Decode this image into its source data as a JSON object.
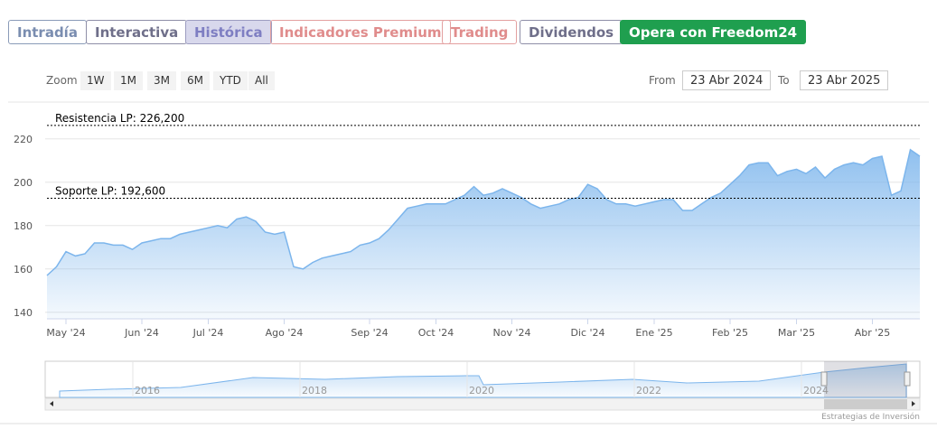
{
  "tabs": [
    "Intradía",
    "Interactiva",
    "Histórica",
    "Indicadores Premium",
    "Trading",
    "Dividendos",
    "Opera con Freedom24"
  ],
  "zoom": {
    "label": "Zoom",
    "buttons": [
      "1W",
      "1M",
      "3M",
      "6M",
      "YTD",
      "All"
    ]
  },
  "range": {
    "from_label": "From",
    "from": "23 Abr 2024",
    "to_label": "To",
    "to": "23 Abr 2025"
  },
  "navigator": {
    "years": [
      "2016",
      "2018",
      "2020",
      "2022",
      "2024"
    ]
  },
  "credit": "Estrategias de Inversión",
  "chart_data": {
    "type": "area",
    "color": "#7cb5ec",
    "grid": true,
    "categories": [
      null,
      null,
      "May '24",
      null,
      null,
      null,
      null,
      null,
      null,
      null,
      "Jun '24",
      null,
      null,
      null,
      null,
      null,
      null,
      "Jul '24",
      null,
      null,
      null,
      null,
      null,
      null,
      null,
      "Ago '24",
      null,
      null,
      null,
      null,
      null,
      null,
      null,
      null,
      "Sep '24",
      null,
      null,
      null,
      null,
      null,
      null,
      "Oct '24",
      null,
      null,
      null,
      null,
      null,
      null,
      null,
      "Nov '24",
      null,
      null,
      null,
      null,
      null,
      null,
      null,
      "Dic '24",
      null,
      null,
      null,
      null,
      null,
      null,
      "Ene '25",
      null,
      null,
      null,
      null,
      null,
      null,
      null,
      "Feb '25",
      null,
      null,
      null,
      null,
      null,
      null,
      "Mar '25",
      null,
      null,
      null,
      null,
      null,
      null,
      null,
      "Abr '25",
      null,
      null,
      null,
      null,
      null
    ],
    "values": [
      157,
      161,
      168,
      166,
      167,
      172,
      172,
      171,
      171,
      169,
      172,
      173,
      174,
      174,
      176,
      177,
      178,
      179,
      180,
      179,
      183,
      184,
      182,
      177,
      176,
      177,
      161,
      160,
      163,
      165,
      166,
      167,
      168,
      171,
      172,
      174,
      178,
      183,
      188,
      189,
      190,
      190,
      190,
      192,
      194,
      198,
      194,
      195,
      197,
      195,
      193,
      190,
      188,
      189,
      190,
      192,
      193,
      199,
      197,
      192,
      190,
      190,
      189,
      190,
      191,
      192,
      192,
      187,
      187,
      190,
      193,
      195,
      199,
      203,
      208,
      209,
      209,
      203,
      205,
      206,
      204,
      207,
      202,
      206,
      208,
      209,
      208,
      211,
      212,
      194,
      196,
      215,
      212
    ],
    "ylim": [
      137,
      237
    ],
    "yticks": [
      140,
      160,
      180,
      200,
      220
    ],
    "plot_lines": [
      {
        "label": "Resistencia LP: 226,200",
        "value": 226.2
      },
      {
        "label": "Soporte LP: 192,600",
        "value": 192.6
      }
    ]
  }
}
